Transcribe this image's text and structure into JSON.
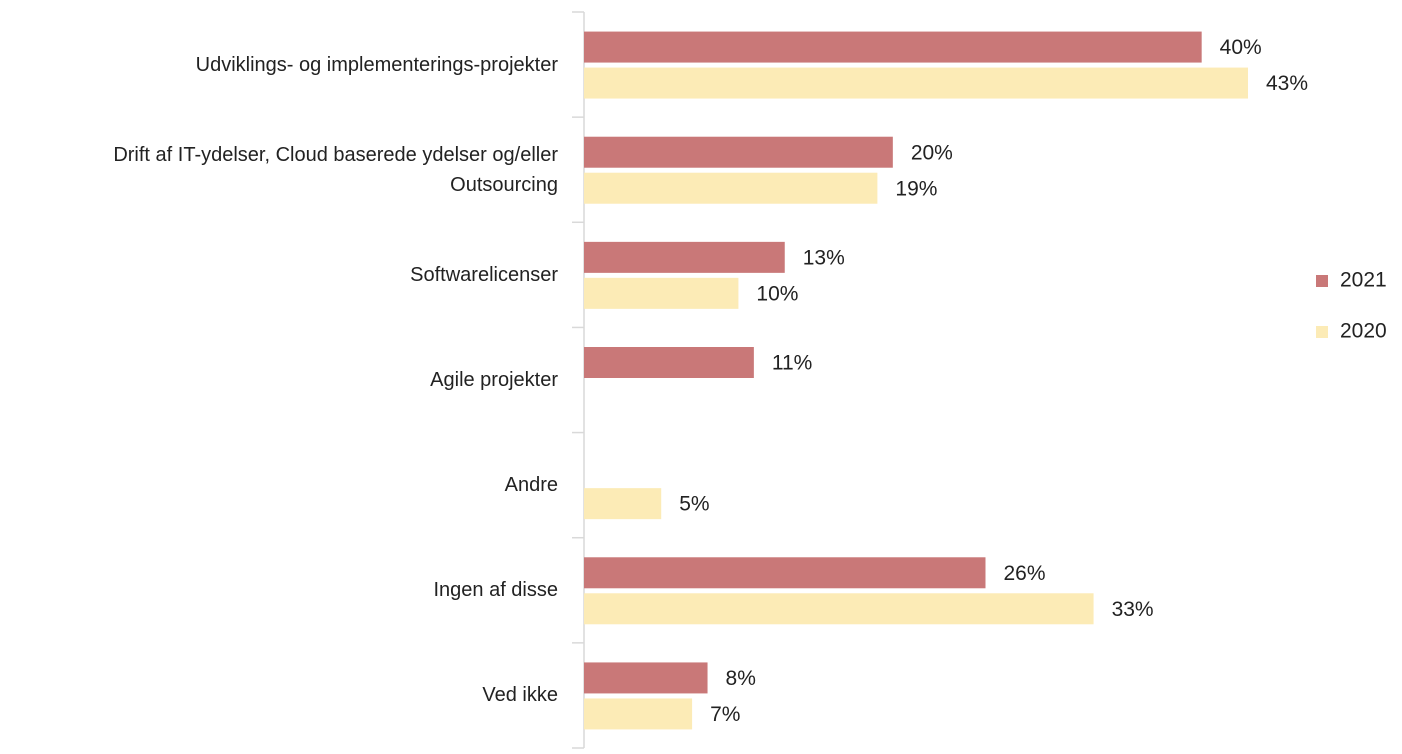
{
  "chart_data": {
    "type": "bar",
    "orientation": "horizontal",
    "categories": [
      "Udviklings- og implementerings-projekter",
      "Drift af IT-ydelser, Cloud baserede ydelser og/eller Outsourcing",
      "Softwarelicenser",
      "Agile projekter",
      "Andre",
      "Ingen af disse",
      "Ved ikke"
    ],
    "series": [
      {
        "name": "2021",
        "color": "#c97878",
        "values": [
          40,
          20,
          13,
          11,
          null,
          26,
          8
        ],
        "value_labels": [
          "40%",
          "20%",
          "13%",
          "11%",
          null,
          "26%",
          "8%"
        ]
      },
      {
        "name": "2020",
        "color": "#fcebb6",
        "values": [
          43,
          19,
          10,
          null,
          5,
          33,
          7
        ],
        "value_labels": [
          "43%",
          "19%",
          "10%",
          null,
          "5%",
          "33%",
          "7%"
        ]
      }
    ],
    "legend": "right"
  }
}
